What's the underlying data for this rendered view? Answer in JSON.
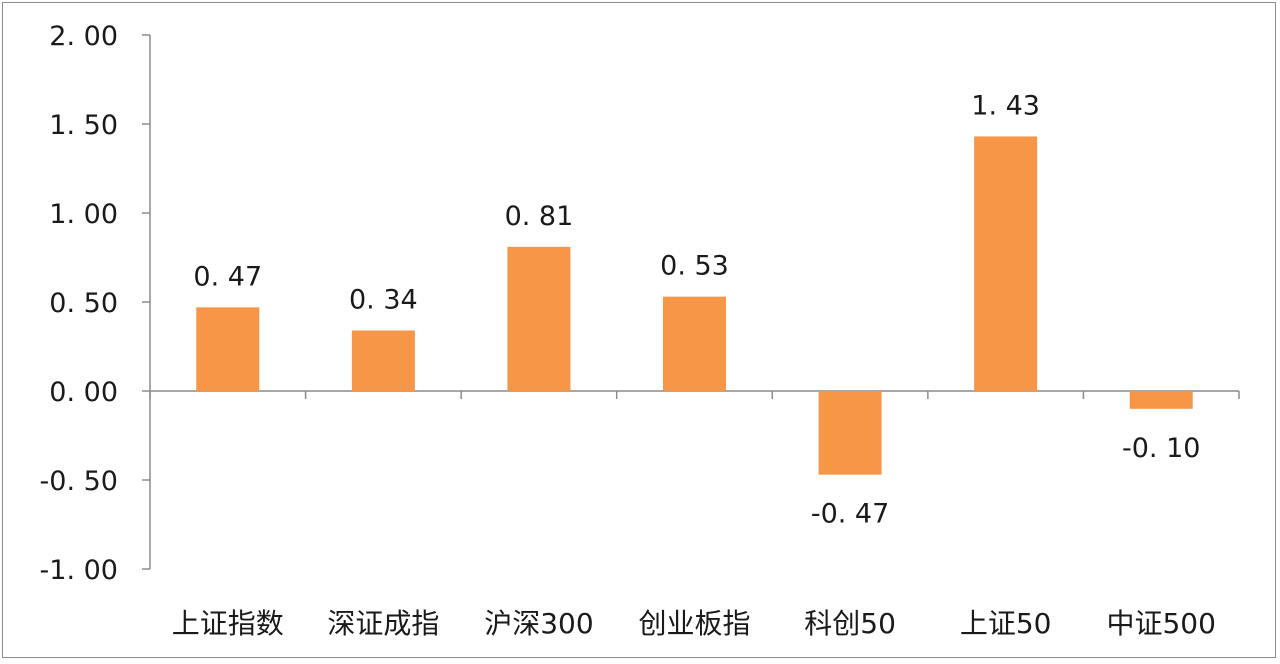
{
  "chart_data": {
    "type": "bar",
    "title": "",
    "xlabel": "",
    "ylabel": "",
    "categories": [
      "上证指数",
      "深证成指",
      "沪深300",
      "创业板指",
      "科创50",
      "上证50",
      "中证500"
    ],
    "values": [
      0.47,
      0.34,
      0.81,
      0.53,
      -0.47,
      1.43,
      -0.1
    ],
    "value_labels": [
      "0. 47",
      "0. 34",
      "0. 81",
      "0. 53",
      "-0. 47",
      "1. 43",
      "-0. 10"
    ],
    "ylim": [
      -1.0,
      2.0
    ],
    "yticks": [
      2.0,
      1.5,
      1.0,
      0.5,
      0.0,
      -0.5,
      -1.0
    ],
    "ytick_labels": [
      "2. 00",
      "1. 50",
      "1. 00",
      "0. 50",
      "0. 00",
      "-0. 50",
      "-1. 00"
    ],
    "grid": false,
    "legend": "none",
    "bar_color": "#F79646",
    "axis_color": "#8c8c8c"
  }
}
